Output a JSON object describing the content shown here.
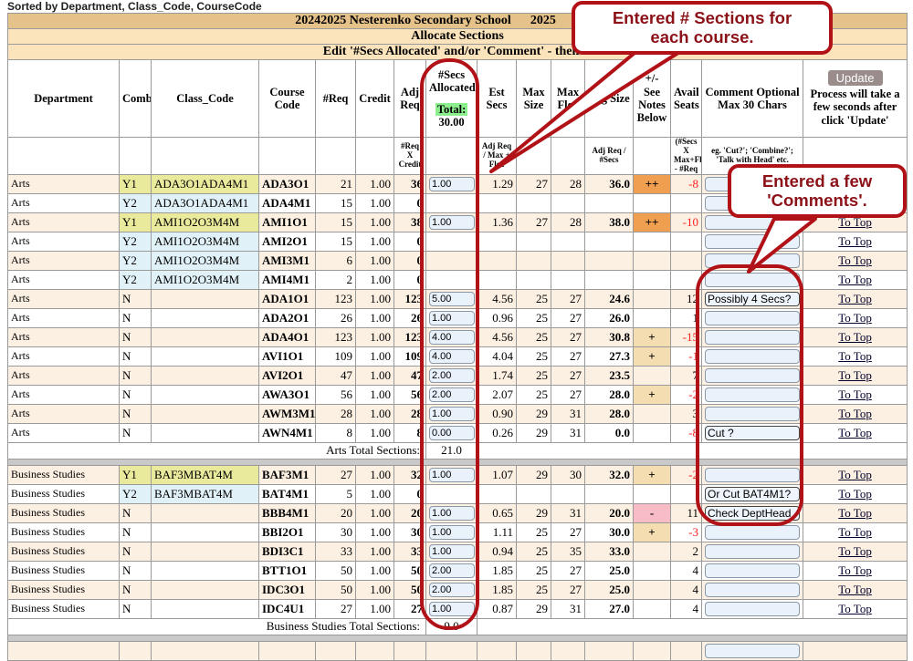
{
  "page": {
    "sorted_by": "Sorted by Department, Class_Code, CourseCode",
    "title_line1": "20242025 Nesterenko Secondary School      2025                    ",
    "title_line2": "Allocate Sections",
    "title_line3": "Edit '#Secs Allocated' and/or 'Comment' - then    "
  },
  "header": {
    "department": "Department",
    "comb": "Comb",
    "class_code": "Class_Code",
    "course_code": "Course Code",
    "req": "#Req",
    "credit": "Credit",
    "adj_req": "Adj Req",
    "secs_allocated": "#Secs Allocated",
    "total_label": "Total:",
    "total_value": "30.00",
    "est_secs": "Est Secs",
    "max_size": "Max Size",
    "max_flex": "Max Flex",
    "avg_size": "Avg Size",
    "plusminus": "+/- See Notes Below",
    "avail_seats": "Avail Seats",
    "comment": "Comment Optional Max 30 Chars",
    "update_button": "Update",
    "update_note": "Process will take a few seconds after click 'Update'",
    "sub": {
      "adj_req": "#Req X Credit",
      "est_secs": "Adj Req / Max + Flex",
      "avg_size": "Adj Req / #Secs",
      "avail_seats": "(#Secs X Max+Flex) - #Req",
      "comment": "eg. 'Cut?'; 'Combine?'; 'Talk with Head' etc."
    }
  },
  "link_to_top": "To Top",
  "sections": [
    {
      "name": "Arts",
      "total_label": "Arts Total Sections:",
      "total_value": "21.0",
      "rows": [
        {
          "dept": "Arts",
          "comb": "Y1",
          "cls": "ADA3O1ADA4M1",
          "course": "ADA3O1",
          "req": "21",
          "credit": "1.00",
          "adj": "36",
          "secs": "1.00",
          "est": "1.29",
          "max": "27",
          "flex": "28",
          "avg": "36.0",
          "pm": "++",
          "avail": "-8",
          "cmt": ""
        },
        {
          "dept": "Arts",
          "comb": "Y2",
          "cls": "ADA3O1ADA4M1",
          "course": "ADA4M1",
          "req": "15",
          "credit": "1.00",
          "adj": "0",
          "secs": null,
          "est": "",
          "max": "",
          "flex": "",
          "avg": "",
          "pm": "",
          "avail": "",
          "cmt": ""
        },
        {
          "dept": "Arts",
          "comb": "Y1",
          "cls": "AMI1O2O3M4M",
          "course": "AMI1O1",
          "req": "15",
          "credit": "1.00",
          "adj": "38",
          "secs": "1.00",
          "est": "1.36",
          "max": "27",
          "flex": "28",
          "avg": "38.0",
          "pm": "++",
          "avail": "-10",
          "cmt": ""
        },
        {
          "dept": "Arts",
          "comb": "Y2",
          "cls": "AMI1O2O3M4M",
          "course": "AMI2O1",
          "req": "15",
          "credit": "1.00",
          "adj": "0",
          "secs": null,
          "est": "",
          "max": "",
          "flex": "",
          "avg": "",
          "pm": "",
          "avail": "",
          "cmt": ""
        },
        {
          "dept": "Arts",
          "comb": "Y2",
          "cls": "AMI1O2O3M4M",
          "course": "AMI3M1",
          "req": "6",
          "credit": "1.00",
          "adj": "0",
          "secs": null,
          "est": "",
          "max": "",
          "flex": "",
          "avg": "",
          "pm": "",
          "avail": "",
          "cmt": ""
        },
        {
          "dept": "Arts",
          "comb": "Y2",
          "cls": "AMI1O2O3M4M",
          "course": "AMI4M1",
          "req": "2",
          "credit": "1.00",
          "adj": "0",
          "secs": null,
          "est": "",
          "max": "",
          "flex": "",
          "avg": "",
          "pm": "",
          "avail": "",
          "cmt": ""
        },
        {
          "dept": "Arts",
          "comb": "N",
          "cls": "",
          "course": "ADA1O1",
          "req": "123",
          "credit": "1.00",
          "adj": "123",
          "secs": "5.00",
          "est": "4.56",
          "max": "25",
          "flex": "27",
          "avg": "24.6",
          "pm": "",
          "avail": "12",
          "cmt": "Possibly 4 Secs?"
        },
        {
          "dept": "Arts",
          "comb": "N",
          "cls": "",
          "course": "ADA2O1",
          "req": "26",
          "credit": "1.00",
          "adj": "26",
          "secs": "1.00",
          "est": "0.96",
          "max": "25",
          "flex": "27",
          "avg": "26.0",
          "pm": "",
          "avail": "1",
          "cmt": ""
        },
        {
          "dept": "Arts",
          "comb": "N",
          "cls": "",
          "course": "ADA4O1",
          "req": "123",
          "credit": "1.00",
          "adj": "123",
          "secs": "4.00",
          "est": "4.56",
          "max": "25",
          "flex": "27",
          "avg": "30.8",
          "pm": "+",
          "avail": "-15",
          "cmt": ""
        },
        {
          "dept": "Arts",
          "comb": "N",
          "cls": "",
          "course": "AVI1O1",
          "req": "109",
          "credit": "1.00",
          "adj": "109",
          "secs": "4.00",
          "est": "4.04",
          "max": "25",
          "flex": "27",
          "avg": "27.3",
          "pm": "+",
          "avail": "-1",
          "cmt": ""
        },
        {
          "dept": "Arts",
          "comb": "N",
          "cls": "",
          "course": "AVI2O1",
          "req": "47",
          "credit": "1.00",
          "adj": "47",
          "secs": "2.00",
          "est": "1.74",
          "max": "25",
          "flex": "27",
          "avg": "23.5",
          "pm": "",
          "avail": "7",
          "cmt": ""
        },
        {
          "dept": "Arts",
          "comb": "N",
          "cls": "",
          "course": "AWA3O1",
          "req": "56",
          "credit": "1.00",
          "adj": "56",
          "secs": "2.00",
          "est": "2.07",
          "max": "25",
          "flex": "27",
          "avg": "28.0",
          "pm": "+",
          "avail": "-2",
          "cmt": ""
        },
        {
          "dept": "Arts",
          "comb": "N",
          "cls": "",
          "course": "AWM3M1",
          "req": "28",
          "credit": "1.00",
          "adj": "28",
          "secs": "1.00",
          "est": "0.90",
          "max": "29",
          "flex": "31",
          "avg": "28.0",
          "pm": "",
          "avail": "3",
          "cmt": ""
        },
        {
          "dept": "Arts",
          "comb": "N",
          "cls": "",
          "course": "AWN4M1",
          "req": "8",
          "credit": "1.00",
          "adj": "8",
          "secs": "0.00",
          "est": "0.26",
          "max": "29",
          "flex": "31",
          "avg": "0.0",
          "pm": "",
          "avail": "-8",
          "cmt": "Cut ?"
        }
      ]
    },
    {
      "name": "Business Studies",
      "total_label": "Business Studies Total Sections:",
      "total_value": "9.0",
      "rows": [
        {
          "dept": "Business Studies",
          "comb": "Y1",
          "cls": "BAF3MBAT4M",
          "course": "BAF3M1",
          "req": "27",
          "credit": "1.00",
          "adj": "32",
          "secs": "1.00",
          "est": "1.07",
          "max": "29",
          "flex": "30",
          "avg": "32.0",
          "pm": "+",
          "avail": "-2",
          "cmt": ""
        },
        {
          "dept": "Business Studies",
          "comb": "Y2",
          "cls": "BAF3MBAT4M",
          "course": "BAT4M1",
          "req": "5",
          "credit": "1.00",
          "adj": "0",
          "secs": null,
          "est": "",
          "max": "",
          "flex": "",
          "avg": "",
          "pm": "",
          "avail": "",
          "cmt": "Or Cut BAT4M1?"
        },
        {
          "dept": "Business Studies",
          "comb": "N",
          "cls": "",
          "course": "BBB4M1",
          "req": "20",
          "credit": "1.00",
          "adj": "20",
          "secs": "1.00",
          "est": "0.65",
          "max": "29",
          "flex": "31",
          "avg": "20.0",
          "pm": "-",
          "avail": "11",
          "cmt": "Check DeptHead"
        },
        {
          "dept": "Business Studies",
          "comb": "N",
          "cls": "",
          "course": "BBI2O1",
          "req": "30",
          "credit": "1.00",
          "adj": "30",
          "secs": "1.00",
          "est": "1.11",
          "max": "25",
          "flex": "27",
          "avg": "30.0",
          "pm": "+",
          "avail": "-3",
          "cmt": ""
        },
        {
          "dept": "Business Studies",
          "comb": "N",
          "cls": "",
          "course": "BDI3C1",
          "req": "33",
          "credit": "1.00",
          "adj": "33",
          "secs": "1.00",
          "est": "0.94",
          "max": "25",
          "flex": "35",
          "avg": "33.0",
          "pm": "",
          "avail": "2",
          "cmt": ""
        },
        {
          "dept": "Business Studies",
          "comb": "N",
          "cls": "",
          "course": "BTT1O1",
          "req": "50",
          "credit": "1.00",
          "adj": "50",
          "secs": "2.00",
          "est": "1.85",
          "max": "25",
          "flex": "27",
          "avg": "25.0",
          "pm": "",
          "avail": "4",
          "cmt": ""
        },
        {
          "dept": "Business Studies",
          "comb": "N",
          "cls": "",
          "course": "IDC3O1",
          "req": "50",
          "credit": "1.00",
          "adj": "50",
          "secs": "2.00",
          "est": "1.85",
          "max": "25",
          "flex": "27",
          "avg": "25.0",
          "pm": "",
          "avail": "4",
          "cmt": ""
        },
        {
          "dept": "Business Studies",
          "comb": "N",
          "cls": "",
          "course": "IDC4U1",
          "req": "27",
          "credit": "1.00",
          "adj": "27",
          "secs": "1.00",
          "est": "0.87",
          "max": "29",
          "flex": "31",
          "avg": "27.0",
          "pm": "",
          "avail": "4",
          "cmt": ""
        }
      ]
    }
  ],
  "callouts": [
    {
      "text_line1": "Entered # Sections for",
      "text_line2": "each course."
    },
    {
      "text_line1": "Entered a few",
      "text_line2": "'Comments'."
    }
  ],
  "colors": {
    "annotation_red": "#b11217",
    "row_peach": "#fcf0e2",
    "y1_yellow": "#eaea9c",
    "y2_blue": "#e1f1f8",
    "plus_plus_orange": "#f09e50",
    "plus_tan": "#f5ddb2",
    "minus_pink": "#f8bcc6",
    "negative_red": "#ff2020",
    "total_green": "#8cee8c",
    "update_button": "#9b8c8c",
    "title_band": "#e6c28b",
    "subtitle_band": "#fbe3bc"
  }
}
